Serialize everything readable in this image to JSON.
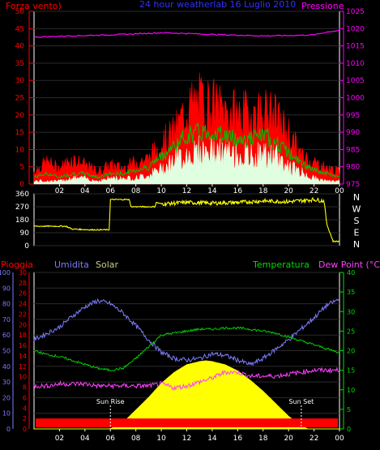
{
  "colors": {
    "background": "#000000",
    "frame": "#ffffff",
    "wind_speed": "#ff0000",
    "wind_series_2": "#00c000",
    "wind_series_3": "#e0ffe0",
    "pressure": "#ff00ff",
    "direction": "#ffff00",
    "rain": "#ff0000",
    "humidity": "#7c7cff",
    "solar": "#ffff00",
    "temperature": "#00cc00",
    "dew_point": "#ff40ff",
    "title": "#3030ff",
    "solar_label": "#cccc88",
    "right_axis": "#00dd00"
  },
  "top_panel": {
    "left_label": "Forza vento)",
    "title": "24 hour weatherlab 16 Luglio 2010",
    "right_label": "Pressione"
  },
  "bottom_panel": {
    "rain_label": "Pioggia",
    "humidity_label": "Umidita",
    "solar_label": "Solar",
    "temperature_label": "Temperatura",
    "dew_point_label": "Dew Point (°C)",
    "sunrise_label": "Sun Rise",
    "sunset_label": "Sun Set",
    "sunrise_hour": 6.0,
    "sunset_hour": 21.0
  },
  "x_ticks": [
    "02",
    "04",
    "06",
    "08",
    "10",
    "12",
    "14",
    "16",
    "18",
    "20",
    "22",
    "00"
  ],
  "compass_labels": [
    "N",
    "W",
    "S",
    "E",
    "N"
  ],
  "chart_data": [
    {
      "type": "line",
      "name": "wind-and-pressure",
      "x_range_hours": [
        0,
        24
      ],
      "y_left_ticks": [
        "0",
        "5",
        "10",
        "15",
        "20",
        "25",
        "30",
        "35",
        "40",
        "45",
        "50"
      ],
      "y_left_range": [
        0,
        50
      ],
      "y_right_ticks": [
        "975",
        "980",
        "985",
        "990",
        "995",
        "1000",
        "1005",
        "1010",
        "1015",
        "1020",
        "1025"
      ],
      "y_right_range": [
        975,
        1025
      ],
      "series": [
        {
          "key": "wind_max",
          "axis": "left",
          "hours": [
            0,
            1,
            2,
            3,
            4,
            5,
            6,
            7,
            8,
            9,
            10,
            11,
            12,
            13,
            14,
            15,
            16,
            17,
            18,
            19,
            20,
            21,
            22,
            23,
            24
          ],
          "values": [
            4,
            7,
            5,
            8,
            6,
            4,
            6,
            5,
            7,
            8,
            13,
            16,
            24,
            26,
            25,
            23,
            22,
            22,
            23,
            21,
            16,
            9,
            7,
            5,
            4
          ]
        },
        {
          "key": "wind_mid",
          "axis": "left",
          "hours": [
            0,
            1,
            2,
            3,
            4,
            5,
            6,
            7,
            8,
            9,
            10,
            11,
            12,
            13,
            14,
            15,
            16,
            17,
            18,
            19,
            20,
            21,
            22,
            23,
            24
          ],
          "values": [
            2,
            3,
            2,
            3,
            3,
            2,
            3,
            3,
            4,
            5,
            8,
            11,
            14,
            15,
            15,
            14,
            13,
            13,
            14,
            12,
            9,
            6,
            4,
            3,
            2
          ]
        },
        {
          "key": "wind_min",
          "axis": "left",
          "hours": [
            0,
            1,
            2,
            3,
            4,
            5,
            6,
            7,
            8,
            9,
            10,
            11,
            12,
            13,
            14,
            15,
            16,
            17,
            18,
            19,
            20,
            21,
            22,
            23,
            24
          ],
          "values": [
            1,
            1,
            1,
            2,
            2,
            1,
            2,
            2,
            2,
            3,
            5,
            8,
            10,
            11,
            11,
            10,
            10,
            9,
            10,
            9,
            6,
            4,
            2,
            1,
            1
          ]
        },
        {
          "key": "pressure",
          "axis": "right",
          "hours": [
            0,
            2,
            4,
            6,
            8,
            10,
            12,
            14,
            16,
            18,
            20,
            22,
            23,
            24
          ],
          "values": [
            1017.5,
            1017.8,
            1018.0,
            1018.2,
            1018.5,
            1018.8,
            1018.6,
            1018.3,
            1018.1,
            1017.9,
            1018.0,
            1018.2,
            1019.0,
            1019.5
          ]
        }
      ]
    },
    {
      "type": "line",
      "name": "wind-direction",
      "x_range_hours": [
        0,
        24
      ],
      "y_ticks": [
        "0",
        "90",
        "180",
        "270",
        "360"
      ],
      "y_range": [
        0,
        360
      ],
      "series": [
        {
          "key": "direction",
          "hours": [
            0,
            2.5,
            3,
            4.5,
            5.9,
            6.0,
            7.5,
            7.6,
            9.5,
            9.6,
            10,
            12,
            14,
            16,
            18,
            20,
            22,
            22.8,
            23.0,
            23.5,
            24
          ],
          "values": [
            135,
            135,
            115,
            110,
            110,
            320,
            320,
            270,
            270,
            300,
            290,
            300,
            295,
            300,
            310,
            305,
            320,
            310,
            150,
            30,
            30
          ]
        }
      ]
    },
    {
      "type": "line",
      "name": "humidity-solar-temperature",
      "x_range_hours": [
        0,
        24
      ],
      "y_humidity_ticks": [
        "0",
        "10",
        "20",
        "30",
        "40",
        "50",
        "60",
        "70",
        "80",
        "90",
        "100"
      ],
      "y_humidity_range": [
        0,
        100
      ],
      "y_rain_ticks": [
        "0",
        "2",
        "4",
        "6",
        "8",
        "10",
        "12",
        "14",
        "16",
        "18",
        "20",
        "22",
        "24",
        "26",
        "28",
        "30"
      ],
      "y_rain_range": [
        0,
        30
      ],
      "y_temp_ticks": [
        "0",
        "5",
        "10",
        "15",
        "20",
        "25",
        "30",
        "35",
        "40"
      ],
      "y_temp_range": [
        0,
        40
      ],
      "series": [
        {
          "key": "humidity",
          "hours": [
            0,
            1,
            2,
            3,
            4,
            5,
            6,
            7,
            8,
            9,
            10,
            11,
            12,
            13,
            14,
            15,
            16,
            17,
            18,
            19,
            20,
            21,
            22,
            23,
            24
          ],
          "values": [
            57,
            61,
            65,
            72,
            78,
            82,
            80,
            74,
            66,
            57,
            49,
            45,
            44,
            45,
            48,
            47,
            44,
            41,
            45,
            51,
            57,
            64,
            71,
            79,
            83
          ]
        },
        {
          "key": "temperature",
          "hours": [
            0,
            1,
            2,
            3,
            4,
            5,
            6,
            7,
            8,
            9,
            10,
            11,
            12,
            13,
            14,
            15,
            16,
            17,
            18,
            19,
            20,
            21,
            22,
            23,
            24
          ],
          "values": [
            20,
            19,
            18.5,
            17.5,
            16.5,
            15.5,
            15,
            15.5,
            18,
            21,
            24,
            24.5,
            25,
            25.5,
            25.5,
            25.8,
            25.8,
            25.5,
            25,
            24.5,
            23.5,
            22.5,
            21.5,
            20.5,
            19.5
          ]
        },
        {
          "key": "dew_point",
          "hours": [
            0,
            1,
            2,
            3,
            4,
            5,
            6,
            7,
            8,
            9,
            10,
            11,
            12,
            13,
            14,
            15,
            16,
            17,
            18,
            19,
            20,
            21,
            22,
            23,
            24
          ],
          "values": [
            11,
            11,
            11.5,
            11.5,
            11.5,
            11,
            11,
            11,
            11,
            11,
            11.5,
            10.5,
            11,
            12,
            13,
            14.5,
            14.5,
            13.5,
            13.5,
            13.5,
            14,
            14.5,
            15,
            15,
            15
          ]
        },
        {
          "key": "solar",
          "hours": [
            0,
            5.5,
            6,
            7,
            8,
            9,
            10,
            11,
            12,
            13,
            13.5,
            14,
            15,
            16,
            17,
            18,
            19,
            20,
            21,
            21.5,
            24
          ],
          "values": [
            0,
            0,
            0,
            4,
            12,
            20,
            29,
            36,
            41,
            43,
            43.5,
            43,
            41,
            37,
            31,
            24,
            16,
            8,
            2,
            0,
            0
          ],
          "axis": "humidity"
        },
        {
          "key": "rain_base",
          "hours": [
            0,
            24
          ],
          "values": [
            2,
            2
          ],
          "axis": "rain"
        }
      ]
    }
  ]
}
